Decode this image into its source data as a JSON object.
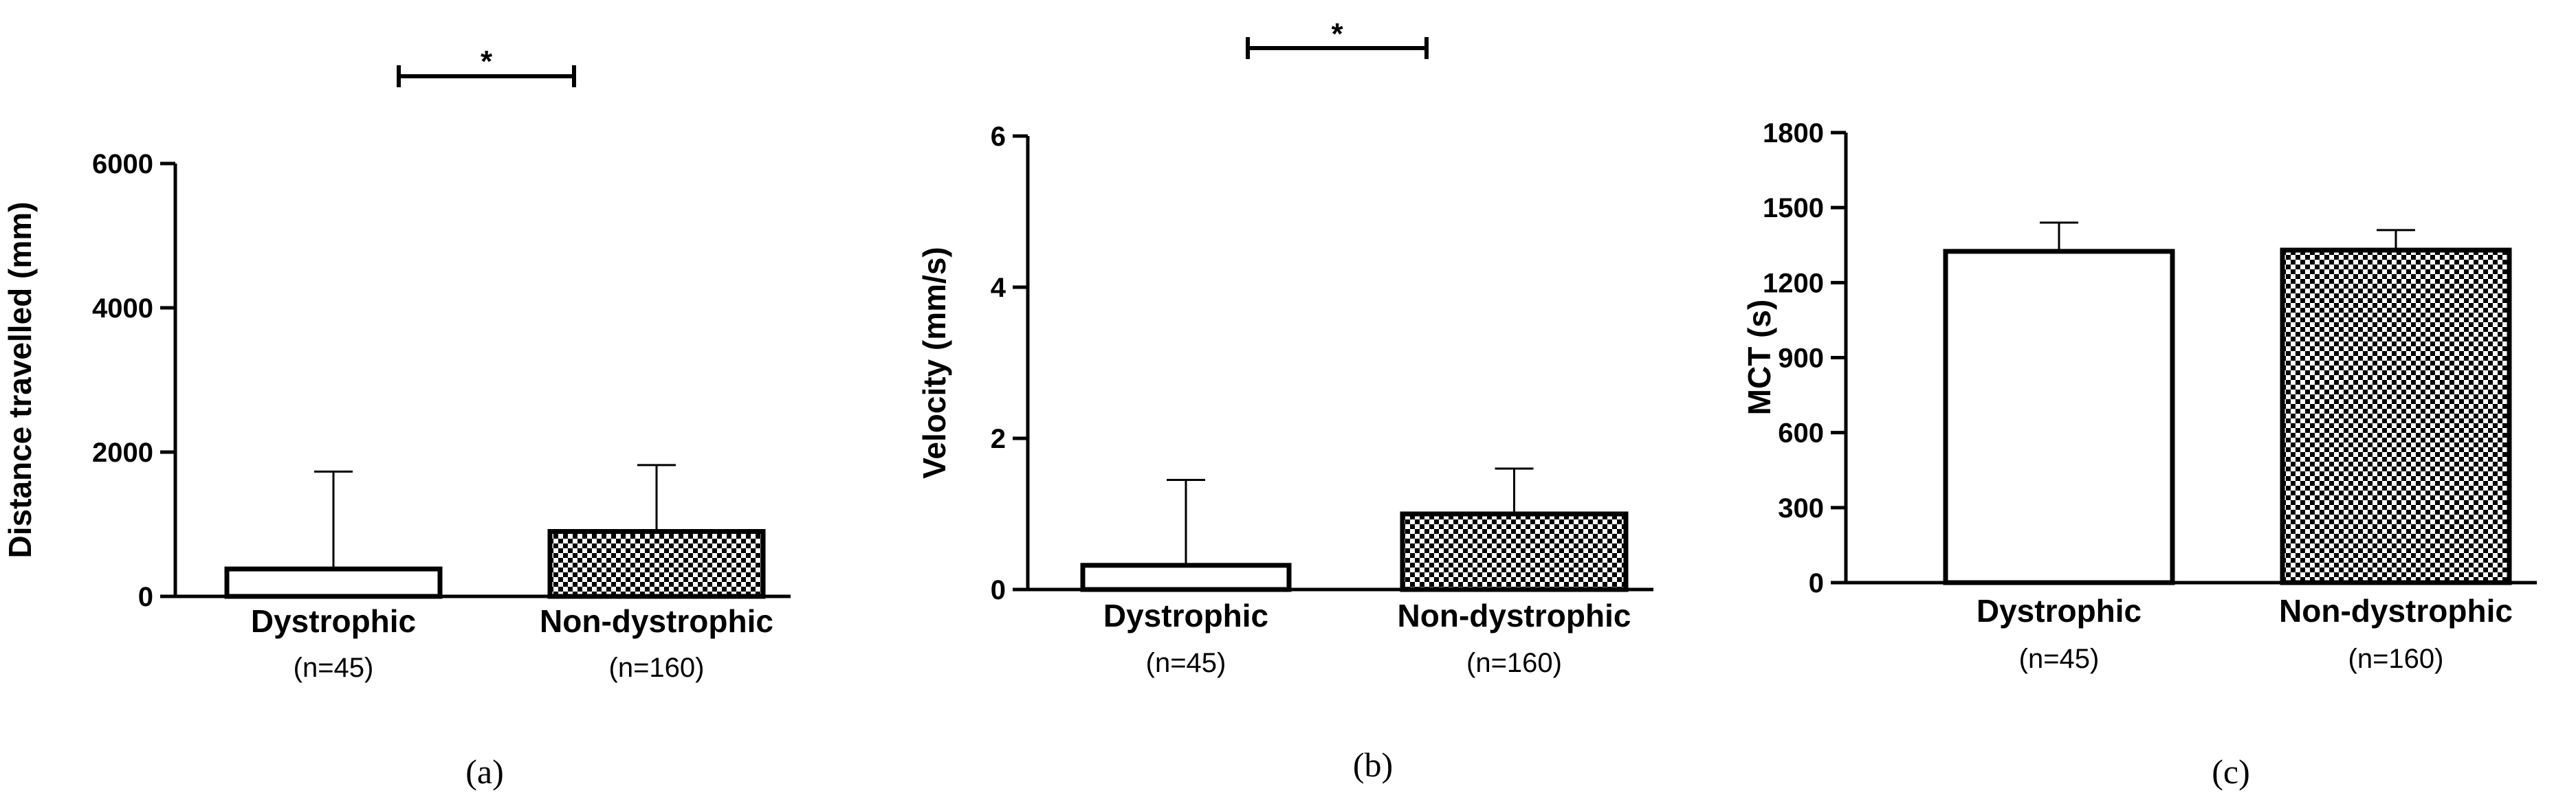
{
  "chart_data": [
    {
      "type": "bar",
      "panel": "(a)",
      "ylabel": "Distance travelled (mm)",
      "ylim": [
        0,
        6000
      ],
      "yticks": [
        0,
        2000,
        4000,
        6000
      ],
      "categories": [
        "Dystrophic",
        "Non-dystrophic"
      ],
      "category_notes": [
        "(n=45)",
        "(n=160)"
      ],
      "values": [
        380,
        900
      ],
      "error_upper": [
        1730,
        1820
      ],
      "fills": [
        "white",
        "checkered"
      ],
      "significance": {
        "between": [
          0,
          1
        ],
        "label": "*"
      }
    },
    {
      "type": "bar",
      "panel": "(b)",
      "ylabel": "Velocity (mm/s)",
      "ylim": [
        0,
        6
      ],
      "yticks": [
        0,
        2,
        4,
        6
      ],
      "categories": [
        "Dystrophic",
        "Non-dystrophic"
      ],
      "category_notes": [
        "(n=45)",
        "(n=160)"
      ],
      "values": [
        0.32,
        1.0
      ],
      "error_upper": [
        1.45,
        1.6
      ],
      "fills": [
        "white",
        "checkered"
      ],
      "significance": {
        "between": [
          0,
          1
        ],
        "label": "*"
      }
    },
    {
      "type": "bar",
      "panel": "(c)",
      "ylabel": "MCT (s)",
      "ylim": [
        0,
        1800
      ],
      "yticks": [
        0,
        300,
        600,
        900,
        1200,
        1500,
        1800
      ],
      "categories": [
        "Dystrophic",
        "Non-dystrophic"
      ],
      "category_notes": [
        "(n=45)",
        "(n=160)"
      ],
      "values": [
        1325,
        1330
      ],
      "error_upper": [
        1440,
        1410
      ],
      "fills": [
        "white",
        "checkered"
      ],
      "significance": null
    }
  ]
}
